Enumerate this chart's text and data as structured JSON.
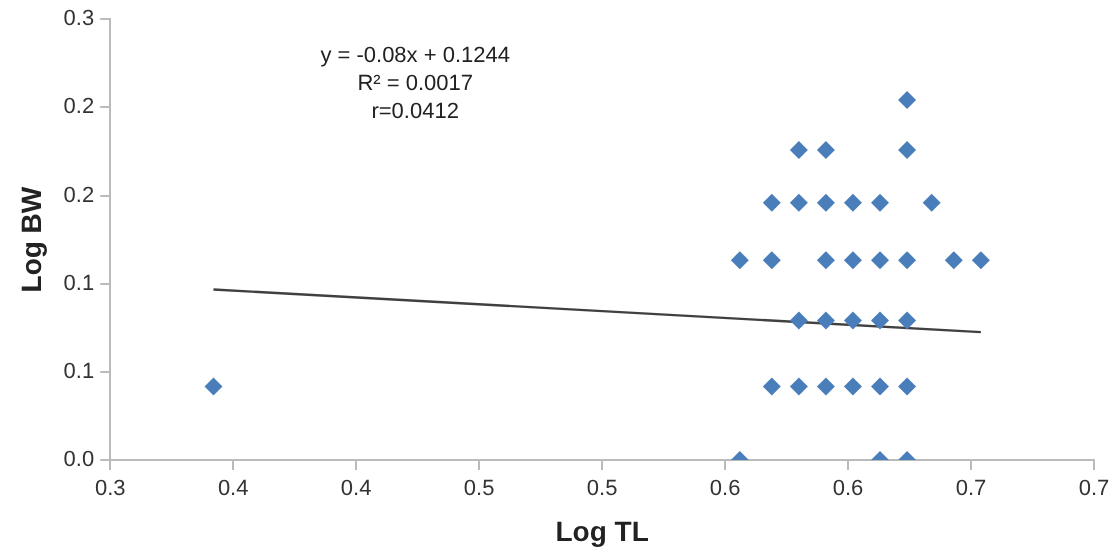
{
  "chart_data": {
    "type": "scatter",
    "xlabel": "Log TL",
    "ylabel": "Log BW",
    "annotations": [
      "y = -0.08x + 0.1244",
      "R² = 0.0017",
      "r=0.0412"
    ],
    "xlim": [
      0.3,
      0.7
    ],
    "xticks": [
      0.3,
      {
        "value": 0.35,
        "label": "0.4"
      },
      0.4,
      {
        "value": 0.45,
        "label": "0.5"
      },
      0.5,
      {
        "value": 0.55,
        "label": "0.6"
      },
      0.6,
      {
        "value": 0.65,
        "label": "0.7"
      },
      0.7
    ],
    "ylim": [
      0,
      0.3
    ],
    "yticks": [
      {
        "value": 0,
        "label": "0.0"
      },
      {
        "value": 0.06,
        "label": "0.1"
      },
      {
        "value": 0.12,
        "label": "0.1"
      },
      {
        "value": 0.18,
        "label": "0.2"
      },
      {
        "value": 0.24,
        "label": "0.2"
      },
      {
        "value": 0.3,
        "label": "0.3"
      }
    ],
    "grid": false,
    "legend": false,
    "marker": "diamond",
    "series": [
      {
        "color": "#4a7ebb",
        "x": [
          0.342,
          0.624,
          0.58,
          0.591,
          0.624,
          0.569,
          0.58,
          0.591,
          0.602,
          0.613,
          0.634,
          0.556,
          0.569,
          0.591,
          0.602,
          0.613,
          0.624,
          0.643,
          0.654,
          0.58,
          0.591,
          0.602,
          0.613,
          0.624,
          0.569,
          0.58,
          0.591,
          0.602,
          0.613,
          0.624,
          0.556,
          0.613,
          0.624
        ],
        "values": [
          0.05,
          0.245,
          0.211,
          0.211,
          0.211,
          0.175,
          0.175,
          0.175,
          0.175,
          0.175,
          0.175,
          0.136,
          0.136,
          0.136,
          0.136,
          0.136,
          0.136,
          0.136,
          0.136,
          0.095,
          0.095,
          0.095,
          0.095,
          0.095,
          0.05,
          0.05,
          0.05,
          0.05,
          0.05,
          0.05,
          0,
          0,
          0
        ]
      },
      {
        "type": "line",
        "color": "#404040",
        "x": [
          0.342,
          0.654
        ],
        "values": [
          0.116,
          0.087
        ],
        "marker": "none"
      }
    ]
  }
}
